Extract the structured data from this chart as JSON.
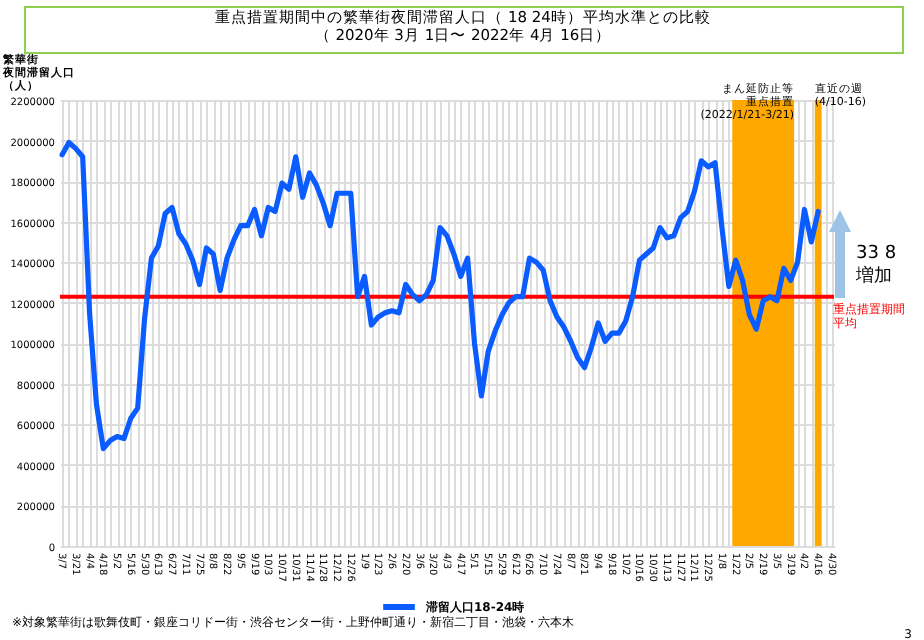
{
  "chart_data": {
    "type": "line",
    "title": "重点措置期間中の繁華街夜間滞留人口（ 18 24時）平均水準との比較",
    "subtitle": "（ 2020年 3月 1日〜 2022年 4月 16日）",
    "ylabel": "繁華街夜間滞留人口（人）",
    "categories": [
      "3/7",
      null,
      "3/21",
      null,
      "4/4",
      null,
      "4/18",
      null,
      "5/2",
      null,
      "5/16",
      null,
      "5/30",
      null,
      "6/13",
      null,
      "6/27",
      null,
      "7/11",
      null,
      "7/25",
      null,
      "8/8",
      null,
      "8/22",
      null,
      "9/5",
      null,
      "9/19",
      null,
      "10/3",
      null,
      "10/17",
      null,
      "10/31",
      null,
      "11/14",
      null,
      "11/28",
      null,
      "12/12",
      null,
      "12/26",
      null,
      "1/9",
      null,
      "1/23",
      null,
      "2/6",
      null,
      "2/20",
      null,
      "3/6",
      null,
      "3/20",
      null,
      "4/3",
      null,
      "4/17",
      null,
      "5/1",
      null,
      "5/15",
      null,
      "5/29",
      null,
      "6/12",
      null,
      "6/26",
      null,
      "7/10",
      null,
      "7/24",
      null,
      "8/7",
      null,
      "8/21",
      null,
      "9/4",
      null,
      "9/18",
      null,
      "10/2",
      null,
      "10/16",
      null,
      "10/30",
      null,
      "11/13",
      null,
      "11/27",
      null,
      "12/11",
      null,
      "12/25",
      null,
      "1/8",
      null,
      "1/22",
      null,
      "2/5",
      null,
      "2/19",
      null,
      "3/5",
      null,
      "3/19",
      null,
      "4/2",
      null,
      "4/16",
      null,
      "4/30"
    ],
    "series": [
      {
        "name": "滞留人口18-24時",
        "color": "#0a5cff",
        "values": [
          1930000,
          1990000,
          1960000,
          1920000,
          1150000,
          700000,
          480000,
          520000,
          540000,
          530000,
          630000,
          680000,
          1120000,
          1420000,
          1480000,
          1640000,
          1670000,
          1540000,
          1490000,
          1410000,
          1290000,
          1470000,
          1440000,
          1260000,
          1420000,
          1510000,
          1580000,
          1580000,
          1660000,
          1530000,
          1670000,
          1650000,
          1790000,
          1760000,
          1920000,
          1720000,
          1840000,
          1780000,
          1690000,
          1580000,
          1740000,
          1740000,
          1740000,
          1230000,
          1330000,
          1090000,
          1130000,
          1150000,
          1160000,
          1150000,
          1290000,
          1240000,
          1210000,
          1240000,
          1310000,
          1570000,
          1530000,
          1440000,
          1330000,
          1420000,
          1000000,
          740000,
          960000,
          1060000,
          1140000,
          1200000,
          1230000,
          1230000,
          1420000,
          1400000,
          1360000,
          1210000,
          1130000,
          1080000,
          1010000,
          930000,
          880000,
          980000,
          1100000,
          1010000,
          1050000,
          1050000,
          1110000,
          1230000,
          1410000,
          1440000,
          1470000,
          1570000,
          1520000,
          1530000,
          1620000,
          1650000,
          1750000,
          1900000,
          1870000,
          1890000,
          1570000,
          1280000,
          1410000,
          1310000,
          1140000,
          1070000,
          1210000,
          1230000,
          1210000,
          1370000,
          1310000,
          1400000,
          1660000,
          1500000,
          1650000,
          null,
          null
        ]
      }
    ],
    "ylim": [
      0,
      2200000
    ],
    "yticks": [
      0,
      200000,
      400000,
      600000,
      800000,
      1000000,
      1200000,
      1400000,
      1600000,
      1800000,
      2000000,
      2200000
    ],
    "grid": true,
    "legend": "bottom",
    "marker": "none",
    "ref_lines": [
      {
        "axis": "y",
        "value": 1230000,
        "label": "重点措置期間平均",
        "color": "#ff0000"
      }
    ],
    "bands": [
      {
        "axis": "x",
        "from": "1/22",
        "to": "3/19",
        "label": "まん延防止等重点措置(2022/1/21-3/21)",
        "color": "#ffa800"
      },
      {
        "axis": "x",
        "from": "4/16",
        "to": "4/16",
        "label": "直近の週(4/10-16)",
        "color": "#ffa800"
      }
    ],
    "annotations": [
      "33 8\n増加",
      "※対象繁華街は歌舞伎町・銀座コリドー街・渋谷センター街・上野仲町通り・新宿二丁目・池袋・六本木",
      "3"
    ]
  }
}
